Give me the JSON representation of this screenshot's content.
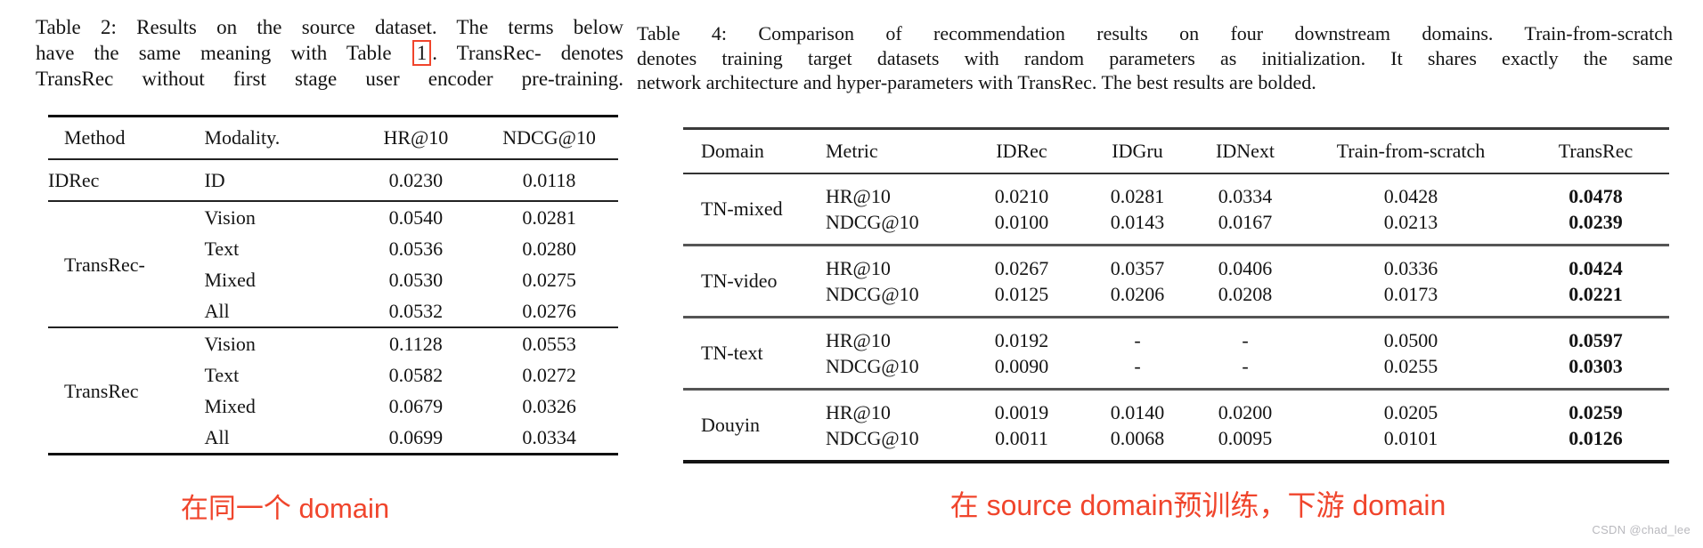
{
  "colors": {
    "annotation_red": "#f0452c",
    "watermark_gray": "#b9b9be",
    "text": "#141414"
  },
  "left": {
    "caption": {
      "line1": "Table 2: Results on the source dataset. The terms below",
      "line2_pre": "have the same meaning with Table",
      "line2_ref": "1",
      "line2_post": ". TransRec- denotes",
      "line3": "TransRec without first stage user encoder pre-training."
    },
    "annotation": "在同一个 domain"
  },
  "table2": {
    "headers": [
      "Method",
      "Modality.",
      "HR@10",
      "NDCG@10"
    ],
    "groups": [
      {
        "method": "IDRec",
        "rows": [
          [
            "ID",
            "0.0230",
            "0.0118"
          ]
        ]
      },
      {
        "method": "TransRec-",
        "rows": [
          [
            "Vision",
            "0.0540",
            "0.0281"
          ],
          [
            "Text",
            "0.0536",
            "0.0280"
          ],
          [
            "Mixed",
            "0.0530",
            "0.0275"
          ],
          [
            "All",
            "0.0532",
            "0.0276"
          ]
        ]
      },
      {
        "method": "TransRec",
        "rows": [
          [
            "Vision",
            "0.1128",
            "0.0553"
          ],
          [
            "Text",
            "0.0582",
            "0.0272"
          ],
          [
            "Mixed",
            "0.0679",
            "0.0326"
          ],
          [
            "All",
            "0.0699",
            "0.0334"
          ]
        ]
      }
    ]
  },
  "right": {
    "caption": {
      "line1": "Table 4: Comparison of recommendation results on four downstream domains. Train-from-scratch",
      "line2": "denotes training target datasets with random parameters as initialization. It shares exactly the same",
      "line3": "network architecture and hyper-parameters with TransRec. The best results are bolded."
    },
    "annotation": "在 source domain预训练，下游 domain"
  },
  "table4": {
    "headers": [
      "Domain",
      "Metric",
      "IDRec",
      "IDGru",
      "IDNext",
      "Train-from-scratch",
      "TransRec"
    ],
    "groups": [
      {
        "domain": "TN-mixed",
        "rows": [
          [
            "HR@10",
            "0.0210",
            "0.0281",
            "0.0334",
            "0.0428",
            "0.0478"
          ],
          [
            "NDCG@10",
            "0.0100",
            "0.0143",
            "0.0167",
            "0.0213",
            "0.0239"
          ]
        ]
      },
      {
        "domain": "TN-video",
        "rows": [
          [
            "HR@10",
            "0.0267",
            "0.0357",
            "0.0406",
            "0.0336",
            "0.0424"
          ],
          [
            "NDCG@10",
            "0.0125",
            "0.0206",
            "0.0208",
            "0.0173",
            "0.0221"
          ]
        ]
      },
      {
        "domain": "TN-text",
        "rows": [
          [
            "HR@10",
            "0.0192",
            "-",
            "-",
            "0.0500",
            "0.0597"
          ],
          [
            "NDCG@10",
            "0.0090",
            "-",
            "-",
            "0.0255",
            "0.0303"
          ]
        ]
      },
      {
        "domain": "Douyin",
        "rows": [
          [
            "HR@10",
            "0.0019",
            "0.0140",
            "0.0200",
            "0.0205",
            "0.0259"
          ],
          [
            "NDCG@10",
            "0.0011",
            "0.0068",
            "0.0095",
            "0.0101",
            "0.0126"
          ]
        ]
      }
    ]
  },
  "watermark": "CSDN @chad_lee"
}
